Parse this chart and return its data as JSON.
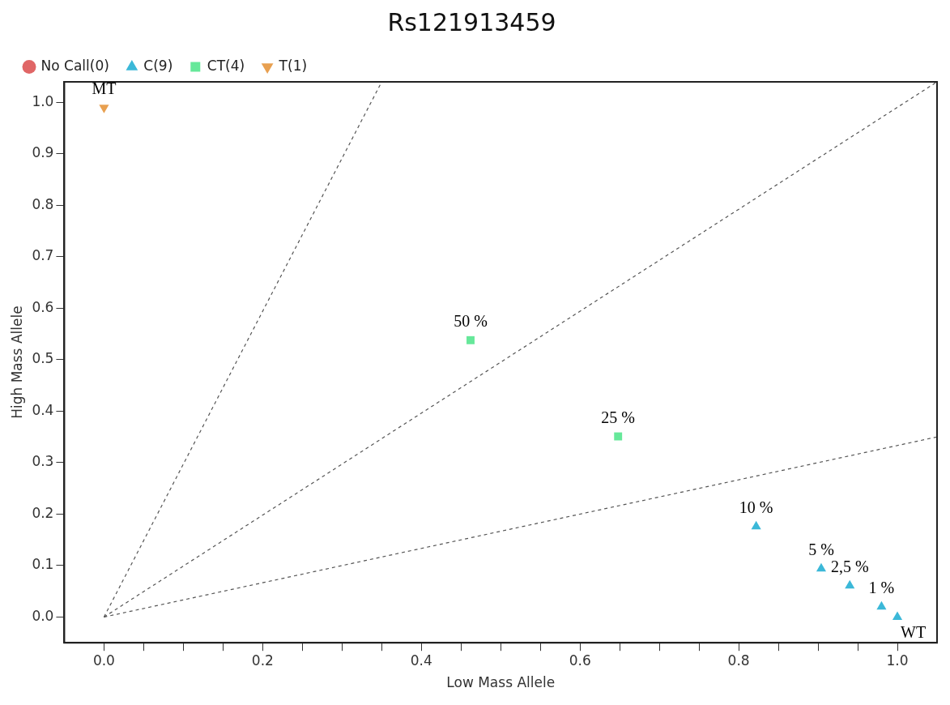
{
  "chart_data": {
    "type": "scatter",
    "title": "Rs121913459",
    "xlabel": "Low Mass Allele",
    "ylabel": "High Mass Allele",
    "xlim": [
      -0.05,
      1.05
    ],
    "ylim": [
      -0.05,
      1.04
    ],
    "xticks": [
      {
        "value": 0,
        "label": "0.0"
      },
      {
        "value": 0.05,
        "label": null
      },
      {
        "value": 0.1,
        "label": null
      },
      {
        "value": 0.15,
        "label": null
      },
      {
        "value": 0.2,
        "label": "0.2"
      },
      {
        "value": 0.25,
        "label": null
      },
      {
        "value": 0.3,
        "label": null
      },
      {
        "value": 0.35,
        "label": null
      },
      {
        "value": 0.4,
        "label": "0.4"
      },
      {
        "value": 0.45,
        "label": null
      },
      {
        "value": 0.5,
        "label": null
      },
      {
        "value": 0.55,
        "label": null
      },
      {
        "value": 0.6,
        "label": "0.6"
      },
      {
        "value": 0.65,
        "label": null
      },
      {
        "value": 0.7,
        "label": null
      },
      {
        "value": 0.75,
        "label": null
      },
      {
        "value": 0.8,
        "label": "0.8"
      },
      {
        "value": 0.85,
        "label": null
      },
      {
        "value": 0.9,
        "label": null
      },
      {
        "value": 0.95,
        "label": null
      },
      {
        "value": 1,
        "label": "1.0"
      }
    ],
    "yticks": [
      {
        "value": 0,
        "label": "0.0"
      },
      {
        "value": 0.1,
        "label": "0.1"
      },
      {
        "value": 0.2,
        "label": "0.2"
      },
      {
        "value": 0.3,
        "label": "0.3"
      },
      {
        "value": 0.4,
        "label": "0.4"
      },
      {
        "value": 0.5,
        "label": "0.5"
      },
      {
        "value": 0.6,
        "label": "0.6"
      },
      {
        "value": 0.7,
        "label": "0.7"
      },
      {
        "value": 0.8,
        "label": "0.8"
      },
      {
        "value": 0.9,
        "label": "0.9"
      },
      {
        "value": 1,
        "label": "1.0"
      }
    ],
    "grid": false,
    "legend": "top left",
    "series": [
      {
        "name": "No Call(0)",
        "color": "#e06666",
        "marker": "circle"
      },
      {
        "name": "C(9)",
        "color": "#3bb8d8",
        "marker": "triangle",
        "x": [
          0.822,
          0.904,
          0.94,
          0.98,
          1.0
        ],
        "values": [
          0.176,
          0.094,
          0.061,
          0.02,
          0.0
        ]
      },
      {
        "name": "CT(4)",
        "color": "#66e89a",
        "marker": "square",
        "x": [
          0.462,
          0.648
        ],
        "values": [
          0.538,
          0.351
        ]
      },
      {
        "name": "T(1)",
        "color": "#e8a050",
        "marker": "triangle-down",
        "x": [
          0.0
        ],
        "values": [
          0.99
        ]
      },
      {
        "type": "line",
        "color": "#555555",
        "line_style": "dashed",
        "marker": "none",
        "x": [
          0,
          0.35
        ],
        "values": [
          0,
          1.04
        ]
      },
      {
        "type": "line",
        "color": "#555555",
        "line_style": "dashed",
        "marker": "none",
        "x": [
          0,
          1.05
        ],
        "values": [
          0,
          1.04
        ]
      },
      {
        "type": "line",
        "color": "#555555",
        "line_style": "dashed",
        "marker": "none",
        "x": [
          0,
          1.05
        ],
        "values": [
          0,
          0.35
        ]
      }
    ],
    "annotations": [
      {
        "text": "MT",
        "x": 0.0,
        "y": 0.99
      },
      {
        "text": "50 %",
        "x": 0.462,
        "y": 0.538
      },
      {
        "text": "25 %",
        "x": 0.648,
        "y": 0.351
      },
      {
        "text": "10 %",
        "x": 0.822,
        "y": 0.176
      },
      {
        "text": "5 %",
        "x": 0.904,
        "y": 0.094
      },
      {
        "text": "2,5 %",
        "x": 0.94,
        "y": 0.061
      },
      {
        "text": "1 %",
        "x": 0.98,
        "y": 0.02
      },
      {
        "text": "WT",
        "x": 1.0,
        "y": 0.0
      }
    ]
  }
}
